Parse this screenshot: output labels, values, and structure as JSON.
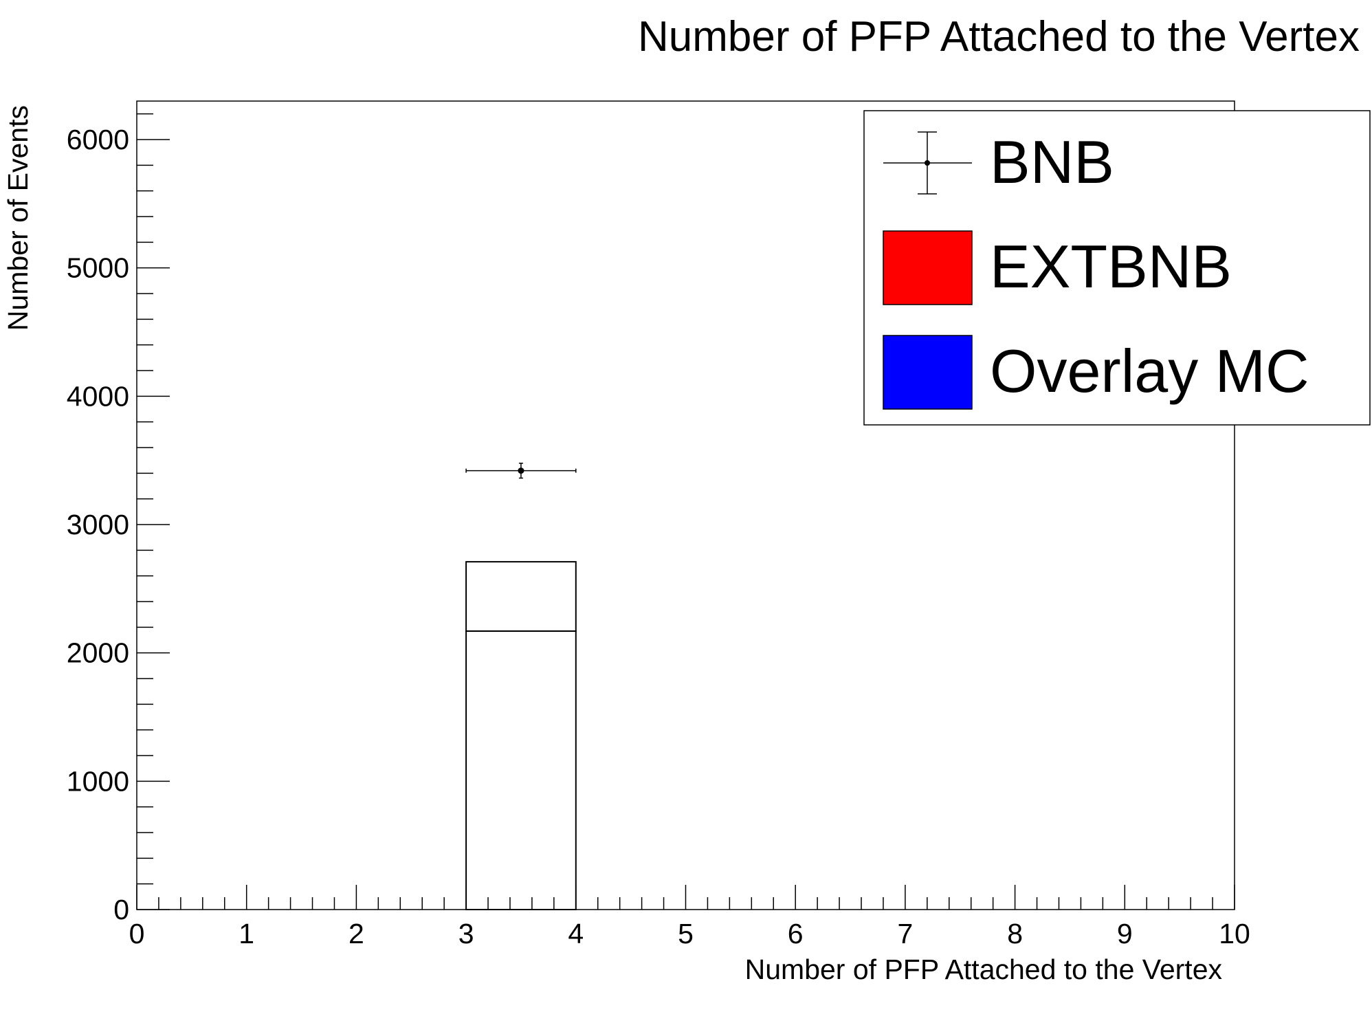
{
  "chart_data": {
    "type": "bar",
    "title": "Number of PFP Attached to the Vertex",
    "xlabel": "Number of PFP Attached to the Vertex",
    "ylabel": "Number of Events",
    "xlim": [
      0,
      10
    ],
    "ylim": [
      0,
      6300
    ],
    "x_ticks": [
      "0",
      "1",
      "2",
      "3",
      "4",
      "5",
      "6",
      "7",
      "8",
      "9",
      "10"
    ],
    "y_ticks": [
      "0",
      "1000",
      "2000",
      "3000",
      "4000",
      "5000",
      "6000"
    ],
    "grid": false,
    "legend_position": "top-right",
    "bins": {
      "x_low": 3,
      "x_high": 4
    },
    "stack": [
      {
        "name": "Overlay MC",
        "color": "#0000ff",
        "value": 2170
      },
      {
        "name": "EXTBNB",
        "color": "#ff0000",
        "value": 540
      }
    ],
    "data_points": {
      "name": "BNB",
      "x": 3.5,
      "x_err": 0.5,
      "y": 3420,
      "y_err": 58
    }
  }
}
